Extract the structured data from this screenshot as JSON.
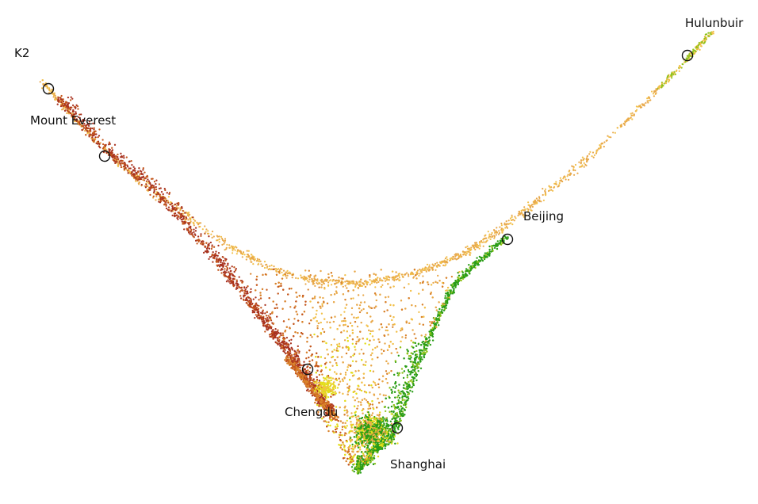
{
  "chart_data": {
    "type": "scatter",
    "title": "",
    "xlabel": "",
    "ylabel": "",
    "axes_visible": false,
    "grid": false,
    "legend": "none",
    "color_scale": [
      "#a8321f",
      "#c4571c",
      "#d9822b",
      "#e8a84a",
      "#f2c04a",
      "#e3dd1a",
      "#8fc21a",
      "#2a9d17"
    ],
    "annotations": [
      {
        "name": "K2",
        "label": "K2"
      },
      {
        "name": "Mount Everest",
        "label": "Mount Everest"
      },
      {
        "name": "Hulunbuir",
        "label": "Hulunbuir"
      },
      {
        "name": "Beijing",
        "label": "Beijing"
      },
      {
        "name": "Chengdu",
        "label": "Chengdu"
      },
      {
        "name": "Shanghai",
        "label": "Shanghai"
      }
    ]
  }
}
